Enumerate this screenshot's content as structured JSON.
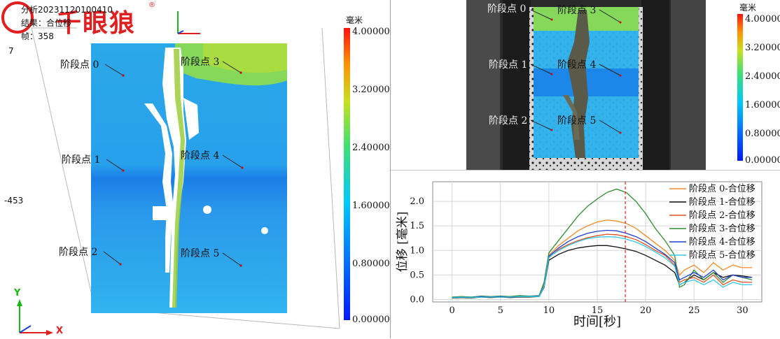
{
  "watermark": {
    "brand": "千眼狼",
    "reg": "®"
  },
  "left": {
    "info_lines": [
      "分析20231120100410",
      "结果：合位移",
      "帧：358"
    ],
    "axis_values": {
      "top": "7",
      "mid": "-453"
    },
    "units": "毫米",
    "colorbar_ticks": [
      "4.00000",
      "3.20000",
      "2.40000",
      "1.60000",
      "0.80000",
      "0.00000"
    ],
    "points": [
      {
        "label": "阶段点 0"
      },
      {
        "label": "阶段点 1"
      },
      {
        "label": "阶段点 2"
      },
      {
        "label": "阶段点 3"
      },
      {
        "label": "阶段点 4"
      },
      {
        "label": "阶段点 5"
      }
    ],
    "triad": {
      "y": "Y",
      "x": "X"
    }
  },
  "right_top": {
    "units": "毫米",
    "colorbar_ticks": [
      "4.00000",
      "3.20000",
      "2.40000",
      "1.60000",
      "0.80000",
      "0.00000"
    ],
    "points": [
      {
        "label": "阶段点 0"
      },
      {
        "label": "阶段点 1"
      },
      {
        "label": "阶段点 2"
      },
      {
        "label": "阶段点 3"
      },
      {
        "label": "阶段点 4"
      },
      {
        "label": "阶段点 5"
      }
    ]
  },
  "chart_data": {
    "type": "line",
    "xlabel": "时间[秒]",
    "ylabel": "位移 [毫米]",
    "xlim": [
      -2,
      32
    ],
    "ylim": [
      -0.05,
      2.4
    ],
    "xticks": [
      0,
      5,
      10,
      15,
      20,
      25,
      30
    ],
    "yticks": [
      0.0,
      0.5,
      1.0,
      1.5,
      2.0
    ],
    "marker_x": 17.9,
    "x": [
      0,
      1,
      2,
      3,
      4,
      5,
      6,
      7,
      8,
      9,
      9.5,
      10,
      11,
      12,
      13,
      14,
      15,
      16,
      17,
      18,
      19,
      20,
      21,
      22,
      23,
      23.5,
      24,
      25,
      26,
      27,
      28,
      29,
      30,
      31
    ],
    "series": [
      {
        "name": "阶段点 0-合位移",
        "color": "#f28c28",
        "values": [
          0.05,
          0.06,
          0.04,
          0.07,
          0.05,
          0.06,
          0.05,
          0.07,
          0.06,
          0.07,
          0.3,
          0.9,
          1.1,
          1.25,
          1.4,
          1.5,
          1.58,
          1.62,
          1.6,
          1.55,
          1.45,
          1.3,
          1.15,
          1.0,
          0.8,
          0.5,
          0.6,
          0.7,
          0.55,
          0.75,
          0.6,
          0.7,
          0.65,
          0.65
        ]
      },
      {
        "name": "阶段点 1-合位移",
        "color": "#111111",
        "values": [
          0.03,
          0.04,
          0.03,
          0.05,
          0.04,
          0.05,
          0.04,
          0.05,
          0.05,
          0.06,
          0.25,
          0.8,
          0.92,
          1.0,
          1.05,
          1.08,
          1.1,
          1.1,
          1.07,
          1.03,
          0.98,
          0.9,
          0.8,
          0.7,
          0.55,
          0.3,
          0.35,
          0.5,
          0.4,
          0.55,
          0.45,
          0.5,
          0.48,
          0.45
        ]
      },
      {
        "name": "阶段点 2-合位移",
        "color": "#e05020",
        "values": [
          0.04,
          0.05,
          0.04,
          0.06,
          0.05,
          0.05,
          0.05,
          0.06,
          0.06,
          0.07,
          0.28,
          0.85,
          1.02,
          1.12,
          1.2,
          1.26,
          1.3,
          1.33,
          1.32,
          1.28,
          1.22,
          1.12,
          1.0,
          0.9,
          0.7,
          0.35,
          0.4,
          0.45,
          0.35,
          0.5,
          0.3,
          0.4,
          0.35,
          0.35
        ]
      },
      {
        "name": "阶段点 3-合位移",
        "color": "#2e8b2e",
        "values": [
          0.05,
          0.06,
          0.05,
          0.07,
          0.06,
          0.07,
          0.06,
          0.08,
          0.07,
          0.08,
          0.35,
          0.95,
          1.2,
          1.45,
          1.7,
          1.9,
          2.05,
          2.18,
          2.25,
          2.18,
          2.0,
          1.75,
          1.45,
          1.2,
          0.9,
          0.25,
          0.3,
          0.6,
          0.4,
          0.55,
          0.35,
          0.5,
          0.45,
          0.4
        ]
      },
      {
        "name": "阶段点 4-合位移",
        "color": "#2040d0",
        "values": [
          0.04,
          0.05,
          0.04,
          0.06,
          0.05,
          0.06,
          0.05,
          0.06,
          0.06,
          0.07,
          0.28,
          0.88,
          1.05,
          1.18,
          1.28,
          1.35,
          1.39,
          1.41,
          1.4,
          1.35,
          1.28,
          1.18,
          1.05,
          0.92,
          0.75,
          0.4,
          0.45,
          0.55,
          0.45,
          0.6,
          0.4,
          0.5,
          0.45,
          0.45
        ]
      },
      {
        "name": "阶段点 5-合位移",
        "color": "#30c8e8",
        "values": [
          0.04,
          0.05,
          0.04,
          0.05,
          0.05,
          0.05,
          0.05,
          0.06,
          0.06,
          0.06,
          0.27,
          0.86,
          1.0,
          1.1,
          1.18,
          1.24,
          1.27,
          1.28,
          1.27,
          1.23,
          1.17,
          1.08,
          0.97,
          0.85,
          0.68,
          0.3,
          0.35,
          0.4,
          0.3,
          0.4,
          0.25,
          0.35,
          0.3,
          0.3
        ]
      }
    ]
  }
}
